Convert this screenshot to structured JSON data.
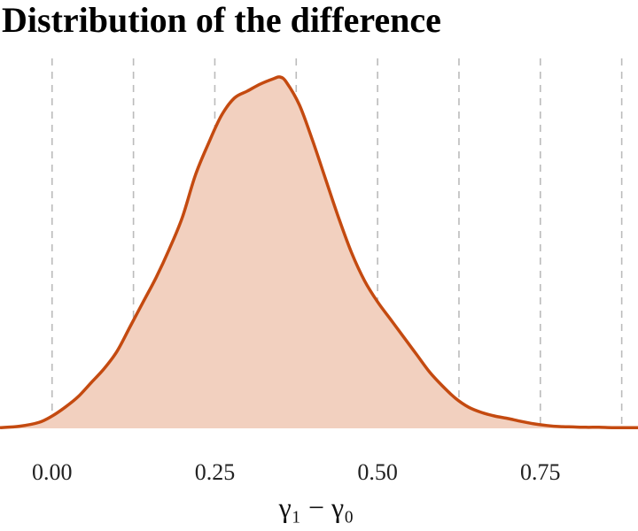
{
  "chart_data": {
    "type": "area",
    "title": "Distribution of the difference",
    "xlabel": "γ₁ − γ₀",
    "ylabel": "",
    "xlim": [
      -0.08,
      0.9
    ],
    "ylim": [
      0,
      1
    ],
    "x_ticks": [
      0.0,
      0.25,
      0.5,
      0.75
    ],
    "x_tick_labels": [
      "0.00",
      "0.25",
      "0.50",
      "0.75"
    ],
    "grid": "vertical dashed, major and minor",
    "minor_grid": [
      0.125,
      0.375,
      0.625,
      0.875
    ],
    "line_color": "#c44a10",
    "fill_color": "#f2d0bf",
    "grid_color": "#bbbbbb",
    "series": [
      {
        "x": [
          -0.08,
          -0.05,
          -0.02,
          0.0,
          0.02,
          0.04,
          0.06,
          0.08,
          0.1,
          0.12,
          0.14,
          0.16,
          0.18,
          0.2,
          0.22,
          0.24,
          0.26,
          0.28,
          0.3,
          0.32,
          0.34,
          0.35,
          0.36,
          0.38,
          0.4,
          0.42,
          0.44,
          0.46,
          0.48,
          0.5,
          0.52,
          0.54,
          0.56,
          0.58,
          0.6,
          0.62,
          0.64,
          0.66,
          0.68,
          0.7,
          0.72,
          0.74,
          0.76,
          0.78,
          0.8,
          0.82,
          0.84,
          0.86,
          0.88,
          0.9
        ],
        "y": [
          0.002,
          0.006,
          0.017,
          0.035,
          0.06,
          0.09,
          0.13,
          0.17,
          0.22,
          0.29,
          0.36,
          0.43,
          0.51,
          0.6,
          0.72,
          0.81,
          0.89,
          0.94,
          0.96,
          0.98,
          0.995,
          1.0,
          0.985,
          0.92,
          0.82,
          0.71,
          0.6,
          0.5,
          0.42,
          0.36,
          0.31,
          0.26,
          0.21,
          0.16,
          0.12,
          0.085,
          0.06,
          0.045,
          0.035,
          0.028,
          0.02,
          0.013,
          0.008,
          0.005,
          0.004,
          0.003,
          0.003,
          0.002,
          0.002,
          0.002
        ]
      }
    ]
  }
}
